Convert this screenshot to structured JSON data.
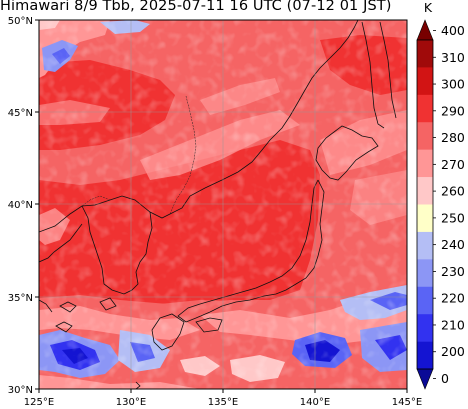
{
  "title": "Himawari 8/9 Tbb, 2025-07-11 16 UTC (07-12 01 JST)",
  "map": {
    "lon_range": [
      125,
      145
    ],
    "lat_range": [
      30,
      50
    ],
    "lon_ticks": [
      "125°E",
      "130°E",
      "135°E",
      "140°E",
      "145°E"
    ],
    "lat_ticks": [
      "30°N",
      "35°N",
      "40°N",
      "45°N",
      "50°N"
    ],
    "grid": true
  },
  "colorbar": {
    "unit": "K",
    "labels": [
      "0",
      "200",
      "210",
      "220",
      "230",
      "240",
      "250",
      "260",
      "270",
      "280",
      "290",
      "300",
      "310",
      "400"
    ],
    "colors": [
      "#0a0a96",
      "#1414d2",
      "#3232f0",
      "#5a64f5",
      "#8c96f5",
      "#b4bef5",
      "#ffffc8",
      "#ffc8c8",
      "#ff9696",
      "#f56464",
      "#f03232",
      "#d21414",
      "#a00a0a",
      "#780000"
    ]
  }
}
